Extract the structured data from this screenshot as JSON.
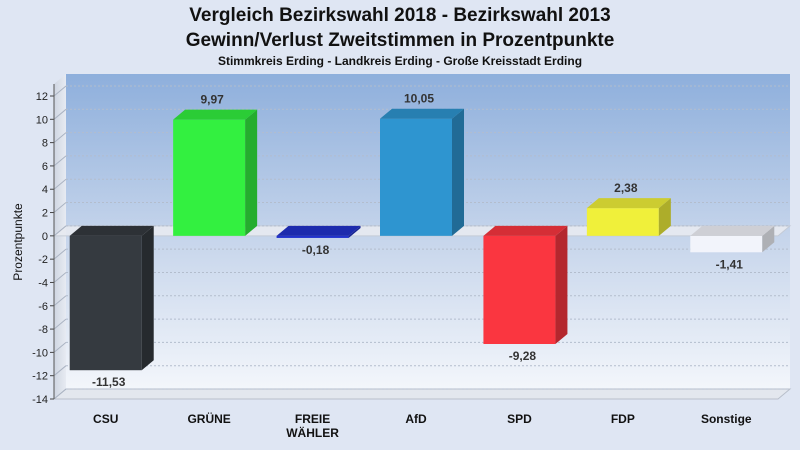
{
  "chart_data": {
    "type": "bar",
    "title": "Vergleich Bezirkswahl 2018 - Bezirkswahl 2013",
    "title2": "Gewinn/Verlust Zweitstimmen in Prozentpunkte",
    "subtitle": "Stimmkreis Erding - Landkreis Erding - Große Kreisstadt Erding",
    "ylabel": "Prozentpunkte",
    "ylim": [
      -14,
      12
    ],
    "yticks": [
      12,
      10,
      8,
      6,
      4,
      2,
      0,
      -2,
      -4,
      -6,
      -8,
      -10,
      -12,
      -14
    ],
    "categories": [
      {
        "lines": [
          "CSU"
        ]
      },
      {
        "lines": [
          "GRÜNE"
        ]
      },
      {
        "lines": [
          "FREIE",
          "WÄHLER"
        ]
      },
      {
        "lines": [
          "AfD"
        ]
      },
      {
        "lines": [
          "SPD"
        ]
      },
      {
        "lines": [
          "FDP"
        ]
      },
      {
        "lines": [
          "Sonstige"
        ]
      }
    ],
    "values": [
      -11.53,
      9.97,
      -0.18,
      10.05,
      -9.28,
      2.38,
      -1.41
    ],
    "value_labels": [
      "-11,53",
      "9,97",
      "-0,18",
      "10,05",
      "-9,28",
      "2,38",
      "-1,41"
    ],
    "colors": [
      "#353a40",
      "#33f040",
      "#2233cc",
      "#2e95d0",
      "#fa3640",
      "#f0f03a",
      "#f2f4fb"
    ],
    "grid": true,
    "legend": "none"
  }
}
